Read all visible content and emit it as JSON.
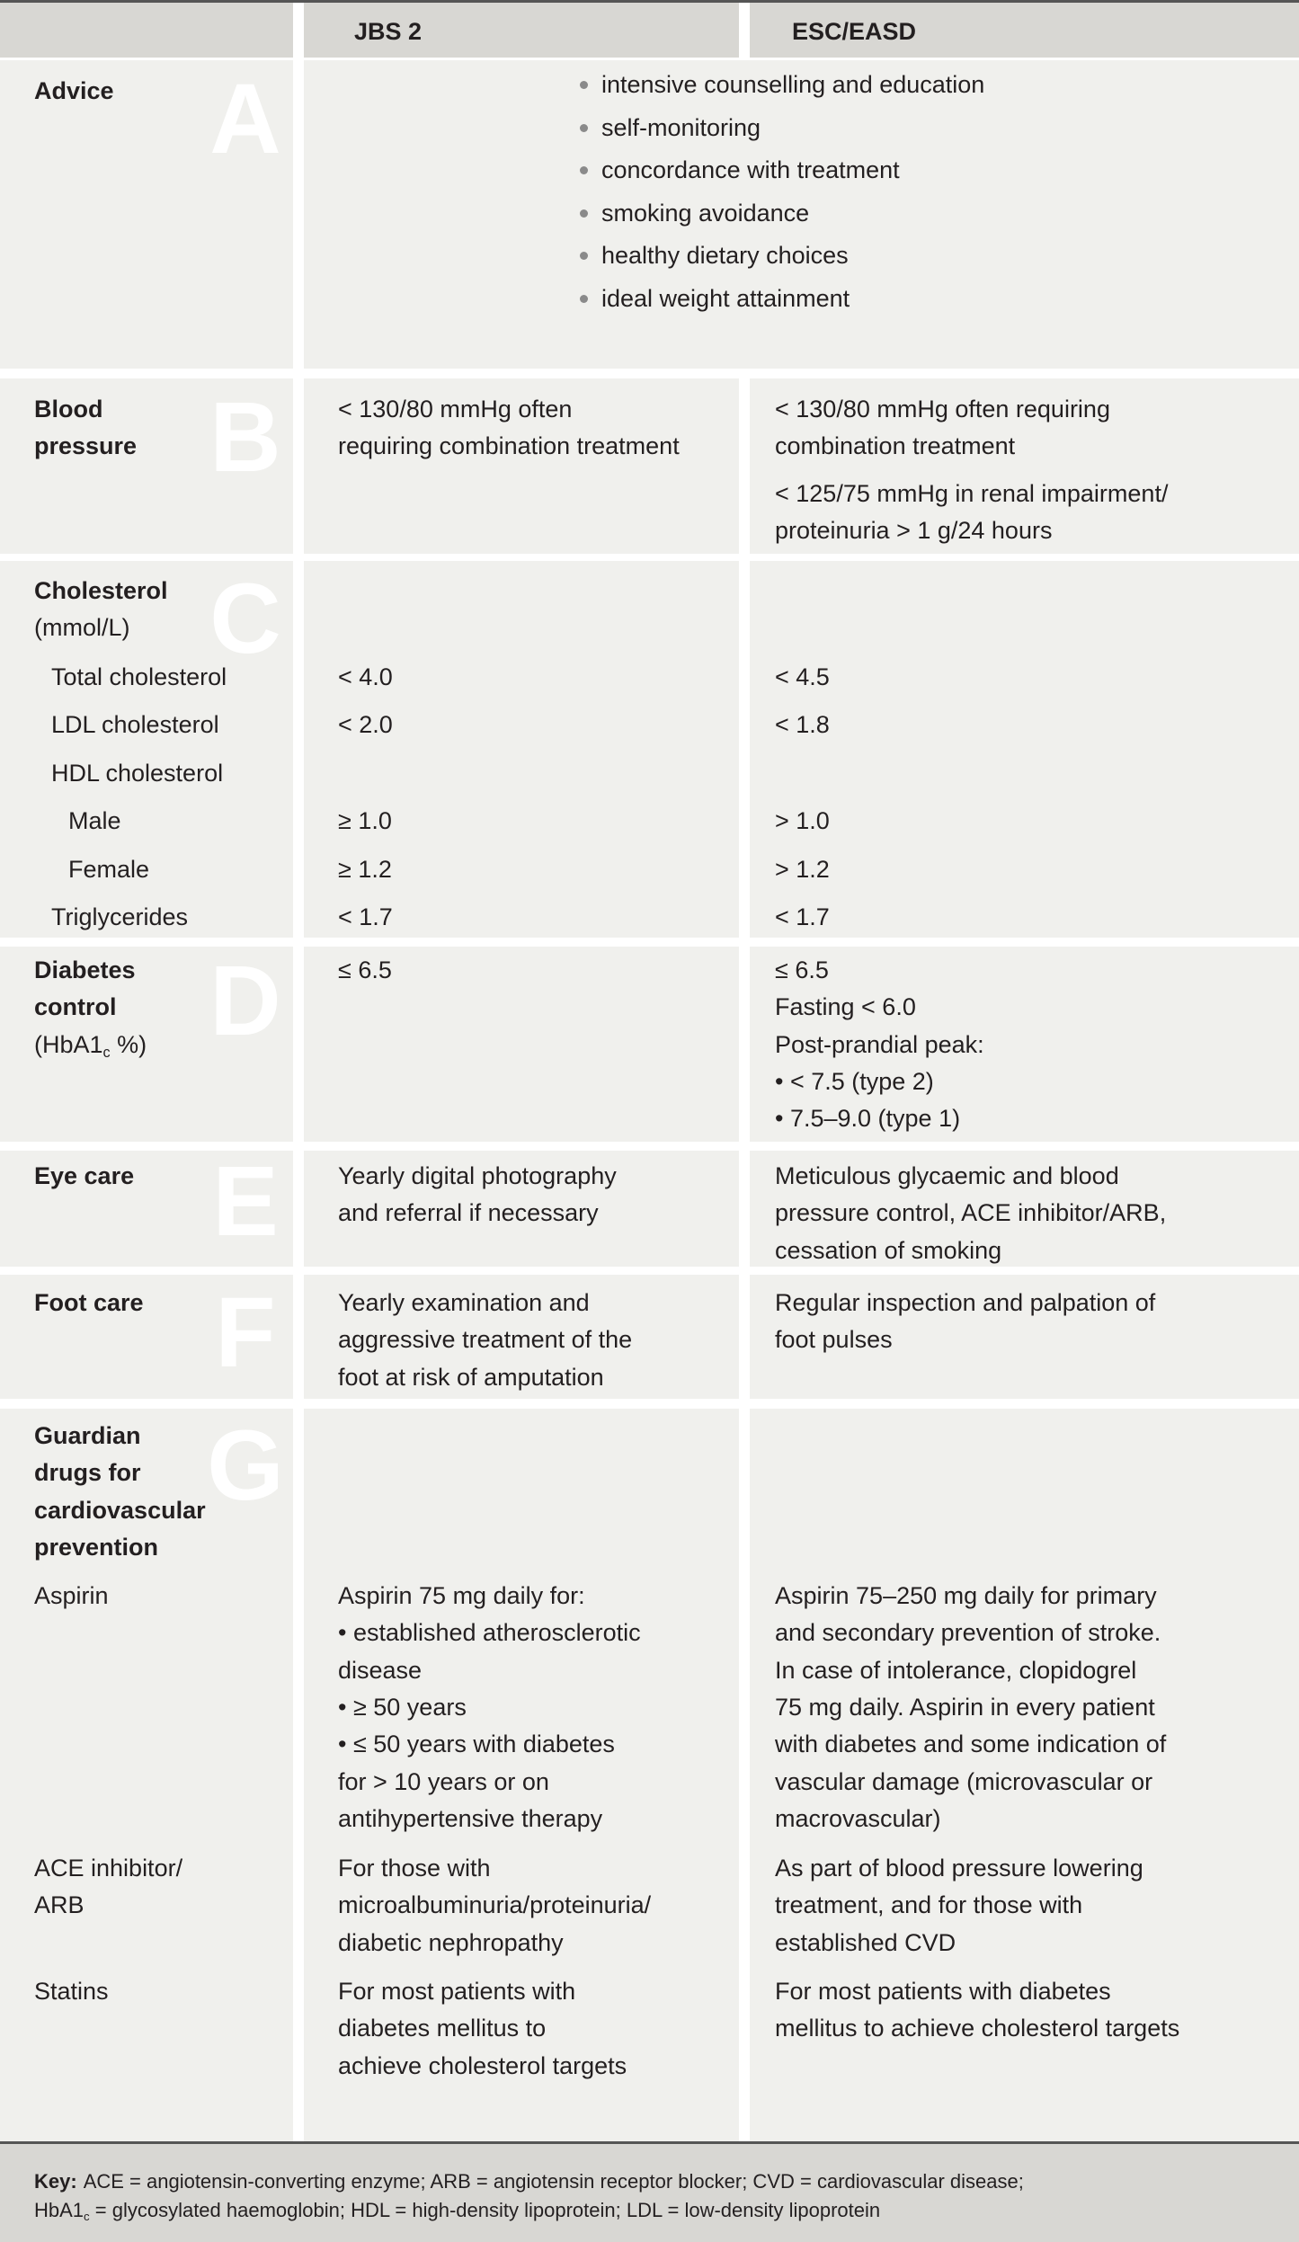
{
  "header": {
    "jbs": "JBS 2",
    "esc": "ESC/EASD"
  },
  "sections": [
    {
      "letter": "A",
      "label": [
        "Advice"
      ],
      "shared": [
        "intensive counselling and education",
        "self-monitoring",
        "concordance with treatment",
        "smoking avoidance",
        "healthy dietary choices",
        "ideal weight attainment"
      ]
    },
    {
      "letter": "B",
      "label": [
        "Blood",
        "pressure"
      ],
      "jbs": [
        [
          "< 130/80 mmHg often",
          "requiring combination treatment"
        ]
      ],
      "esc": [
        [
          "< 130/80 mmHg often requiring",
          "combination treatment"
        ],
        [
          "< 125/75 mmHg in renal impairment/",
          "proteinuria > 1 g/24 hours"
        ]
      ]
    },
    {
      "letter": "C",
      "label": [
        "Cholesterol"
      ],
      "unit": "(mmol/L)",
      "rows": [
        {
          "name": "Total cholesterol",
          "jbs": "< 4.0",
          "esc": "< 4.5"
        },
        {
          "name": "LDL cholesterol",
          "jbs": "< 2.0",
          "esc": "< 1.8"
        },
        {
          "name": "HDL cholesterol",
          "rows": [
            {
              "name": "Male",
              "jbs": "≥ 1.0",
              "esc": "> 1.0"
            },
            {
              "name": "Female",
              "jbs": "≥ 1.2",
              "esc": "> 1.2"
            }
          ]
        },
        {
          "name": "Triglycerides",
          "jbs": "< 1.7",
          "esc": "< 1.7"
        }
      ]
    },
    {
      "letter": "D",
      "label": [
        "Diabetes",
        "control"
      ],
      "unit": {
        "prefix": "(HbA1",
        "sub": "c",
        "suffix": " %)"
      },
      "jbs": [
        "≤ 6.5"
      ],
      "esc": [
        "≤ 6.5",
        "Fasting < 6.0",
        "Post-prandial peak:",
        "• < 7.5 (type 2)",
        "• 7.5–9.0 (type 1)"
      ]
    },
    {
      "letter": "E",
      "label": [
        "Eye care"
      ],
      "jbs": [
        "Yearly digital photography",
        "and referral if necessary"
      ],
      "esc": [
        "Meticulous glycaemic and blood",
        "pressure control, ACE inhibitor/ARB,",
        "cessation of smoking"
      ]
    },
    {
      "letter": "F",
      "label": [
        "Foot care"
      ],
      "jbs": [
        "Yearly examination and",
        "aggressive treatment of the",
        "foot at risk of amputation"
      ],
      "esc": [
        "Regular inspection and palpation of",
        "foot pulses"
      ]
    },
    {
      "letter": "G",
      "label": [
        "Guardian",
        "drugs for",
        "cardiovascular",
        "prevention"
      ],
      "drugs": [
        {
          "name": [
            "Aspirin"
          ],
          "jbs": [
            "Aspirin 75 mg daily for:",
            "• established atherosclerotic",
            "disease",
            "• ≥ 50 years",
            "• ≤ 50 years with diabetes",
            "for > 10 years or on",
            "antihypertensive therapy"
          ],
          "esc": [
            "Aspirin 75–250 mg daily for primary",
            "and secondary prevention of stroke.",
            "In case of intolerance, clopidogrel",
            "75 mg daily. Aspirin in every patient",
            "with diabetes and some indication of",
            "vascular damage (microvascular or",
            "macrovascular)"
          ]
        },
        {
          "name": [
            "ACE inhibitor/",
            "ARB"
          ],
          "jbs": [
            "For those with",
            "microalbuminuria/proteinuria/",
            "diabetic nephropathy"
          ],
          "esc": [
            "As part of blood pressure lowering",
            "treatment, and for those with",
            "established CVD"
          ]
        },
        {
          "name": [
            "Statins"
          ],
          "jbs": [
            "For most patients with",
            "diabetes mellitus to",
            "achieve cholesterol targets"
          ],
          "esc": [
            "For most patients with diabetes",
            "mellitus to achieve cholesterol targets"
          ]
        }
      ]
    }
  ],
  "key": {
    "label": "Key:",
    "line1": "ACE = angiotensin-converting enzyme; ARB = angiotensin receptor blocker; CVD = cardiovascular disease;",
    "line2": {
      "prefix": "HbA1",
      "sub": "c",
      "suffix": " = glycosylated haemoglobin; HDL = high-density lipoprotein; LDL = low-density lipoprotein"
    }
  }
}
